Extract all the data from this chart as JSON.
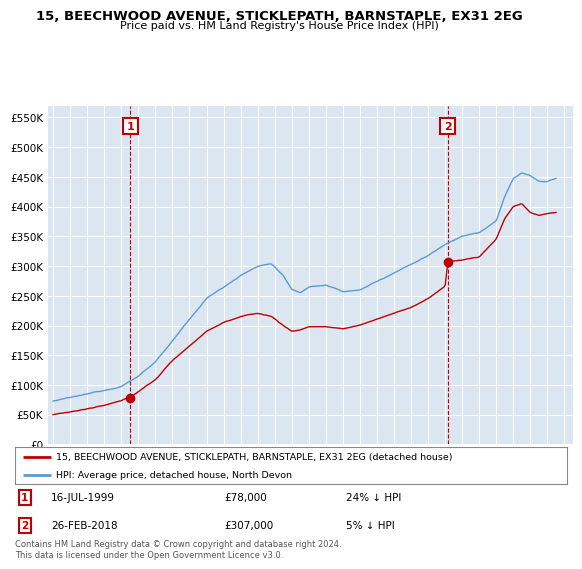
{
  "title": "15, BEECHWOOD AVENUE, STICKLEPATH, BARNSTAPLE, EX31 2EG",
  "subtitle": "Price paid vs. HM Land Registry's House Price Index (HPI)",
  "legend_line1": "15, BEECHWOOD AVENUE, STICKLEPATH, BARNSTAPLE, EX31 2EG (detached house)",
  "legend_line2": "HPI: Average price, detached house, North Devon",
  "annotation1_label": "1",
  "annotation1_date": "16-JUL-1999",
  "annotation1_price": "£78,000",
  "annotation1_hpi": "24% ↓ HPI",
  "annotation2_label": "2",
  "annotation2_date": "26-FEB-2018",
  "annotation2_price": "£307,000",
  "annotation2_hpi": "5% ↓ HPI",
  "footer": "Contains HM Land Registry data © Crown copyright and database right 2024.\nThis data is licensed under the Open Government Licence v3.0.",
  "hpi_color": "#5b9bd5",
  "price_color": "#c00000",
  "background_color": "#ffffff",
  "chart_bg_color": "#dce6f1",
  "grid_color": "#ffffff",
  "ylim": [
    0,
    570000
  ],
  "yticks": [
    0,
    50000,
    100000,
    150000,
    200000,
    250000,
    300000,
    350000,
    400000,
    450000,
    500000,
    550000
  ],
  "ytick_labels": [
    "£0",
    "£50K",
    "£100K",
    "£150K",
    "£200K",
    "£250K",
    "£300K",
    "£350K",
    "£400K",
    "£450K",
    "£500K",
    "£550K"
  ],
  "sale1_x": 1999.54,
  "sale1_y": 78000,
  "sale2_x": 2018.15,
  "sale2_y": 307000,
  "xmin": 1994.7,
  "xmax": 2025.5,
  "hpi_anchors_x": [
    1995.0,
    1996.0,
    1997.0,
    1998.0,
    1999.0,
    2000.0,
    2001.0,
    2002.0,
    2003.0,
    2004.0,
    2005.0,
    2006.0,
    2007.0,
    2007.8,
    2008.5,
    2009.0,
    2009.5,
    2010.0,
    2011.0,
    2012.0,
    2013.0,
    2014.0,
    2015.0,
    2016.0,
    2017.0,
    2017.5,
    2018.0,
    2019.0,
    2020.0,
    2021.0,
    2021.5,
    2022.0,
    2022.5,
    2023.0,
    2023.5,
    2024.0,
    2024.5
  ],
  "hpi_anchors_y": [
    73000,
    78000,
    83000,
    90000,
    98000,
    115000,
    140000,
    175000,
    210000,
    245000,
    265000,
    285000,
    300000,
    305000,
    285000,
    260000,
    255000,
    265000,
    268000,
    258000,
    260000,
    275000,
    290000,
    305000,
    320000,
    330000,
    340000,
    355000,
    360000,
    380000,
    420000,
    450000,
    460000,
    455000,
    445000,
    445000,
    450000
  ],
  "pp_anchors_x": [
    1995.0,
    1996.0,
    1997.0,
    1998.0,
    1999.0,
    1999.54,
    2000.0,
    2001.0,
    2002.0,
    2003.0,
    2004.0,
    2005.0,
    2006.0,
    2007.0,
    2007.8,
    2008.5,
    2009.0,
    2009.5,
    2010.0,
    2011.0,
    2012.0,
    2013.0,
    2014.0,
    2015.0,
    2016.0,
    2017.0,
    2018.0,
    2018.15,
    2019.0,
    2020.0,
    2021.0,
    2021.5,
    2022.0,
    2022.5,
    2023.0,
    2023.5,
    2024.0,
    2024.5
  ],
  "pp_anchors_y": [
    50000,
    55000,
    60000,
    65000,
    72000,
    78000,
    88000,
    108000,
    140000,
    165000,
    190000,
    205000,
    215000,
    220000,
    215000,
    200000,
    190000,
    192000,
    198000,
    198000,
    193000,
    200000,
    210000,
    220000,
    230000,
    245000,
    265000,
    307000,
    310000,
    315000,
    345000,
    380000,
    400000,
    405000,
    390000,
    385000,
    388000,
    390000
  ]
}
